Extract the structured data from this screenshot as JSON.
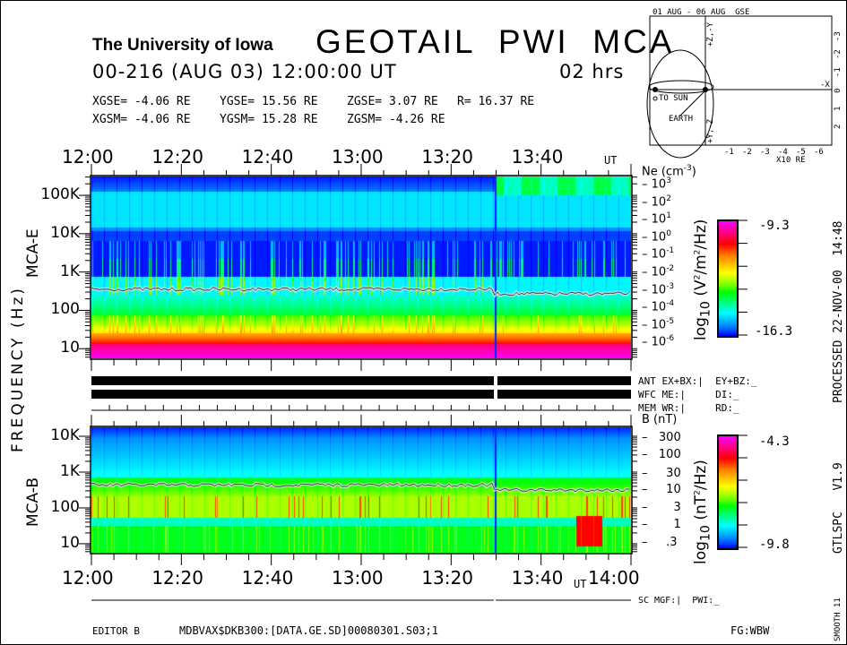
{
  "header": {
    "institution": "The University of Iowa",
    "title": "GEOTAIL  PWI  MCA",
    "date_line": "00-216 (AUG 03) 12:00:00 UT",
    "duration": "02 hrs",
    "coords_gse": [
      "XGSE=  -4.06 RE",
      "YGSE=  15.56 RE",
      "ZGSE=   3.07 RE",
      "R= 16.37 RE"
    ],
    "coords_gsm": [
      "XGSM=  -4.06 RE",
      "YGSM=  15.28 RE",
      "ZGSM=  -4.26 RE"
    ]
  },
  "orbit_plot": {
    "title": "01 AUG - 06 AUG  GSE",
    "x_ticks": [
      "-1",
      "-2",
      "-3",
      "-4",
      "-5",
      "-6"
    ],
    "x_unit": "X10 RE",
    "y_ticks": [
      "-3",
      "-2",
      "-1",
      "0",
      "1",
      "2"
    ],
    "axis_labels": [
      "+Z,-Y",
      "+Y,-Z",
      "-X"
    ],
    "sun_label": "TO SUN",
    "earth_label": "EARTH"
  },
  "status_rows": {
    "ant": "ANT EX+BX:|  EY+BZ:_",
    "wfc": "WFC ME:|     DI:_",
    "mem": "MEM WR:|     RD:_",
    "sc": "SC MGF:|  PWI:_"
  },
  "side_text": {
    "processed": "PROCESSED 22-NOV-00  14:48",
    "version": "GTLSPC   V1.9",
    "smooth": "SMOOTH 11"
  },
  "footer": {
    "editor": "EDITOR B",
    "file": "MDBVAX$DKB300:[DATA.GE.SD]00080301.S03;1",
    "fg": "FG:WBW"
  },
  "chart_data": [
    {
      "type": "heatmap",
      "title": "MCA-E",
      "ylabel": "FREQUENCY (Hz)",
      "x_tick_labels": [
        "12:00",
        "12:20",
        "12:40",
        "13:00",
        "13:20",
        "13:40"
      ],
      "x_unit": "UT",
      "xlim": [
        "12:00",
        "14:00"
      ],
      "y_tick_labels": [
        "10",
        "100",
        "1K",
        "10K",
        "100K"
      ],
      "yscale": "log",
      "ylim_hz": [
        5.6,
        311000
      ],
      "right_axis": {
        "label": "Ne (cm-3)",
        "ticks": [
          "10^3",
          "10^2",
          "10^1",
          "10^0",
          "10^-1",
          "10^-2",
          "10^-3",
          "10^-4",
          "10^-5",
          "10^-6"
        ]
      },
      "colorbar": {
        "label": "log10 (V2/m2/Hz)",
        "max": "-9.3",
        "min": "-16.3"
      },
      "data_gap_time": "13:30",
      "overlay_line": "electron plasma frequency trace, ~300 Hz before 13:30, ~230 Hz after"
    },
    {
      "type": "heatmap",
      "title": "MCA-B",
      "ylabel": "FREQUENCY (Hz)",
      "x_tick_labels": [
        "12:00",
        "12:20",
        "12:40",
        "13:00",
        "13:20",
        "13:40",
        "14:00"
      ],
      "x_unit": "UT",
      "xlim": [
        "12:00",
        "14:00"
      ],
      "y_tick_labels": [
        "10",
        "100",
        "1K",
        "10K"
      ],
      "yscale": "log",
      "ylim_hz": [
        5.6,
        17800
      ],
      "right_axis": {
        "label": "B (nT)",
        "ticks": [
          "300",
          "100",
          "30",
          "10",
          "3",
          "1",
          ".3"
        ]
      },
      "colorbar": {
        "label": "log10 (nT2/Hz)",
        "max": "-4.3",
        "min": "-9.8"
      },
      "data_gap_time": "13:30",
      "overlay_line": "electron cyclotron frequency trace, ~300 Hz before 13:30, ~250 Hz after"
    }
  ]
}
